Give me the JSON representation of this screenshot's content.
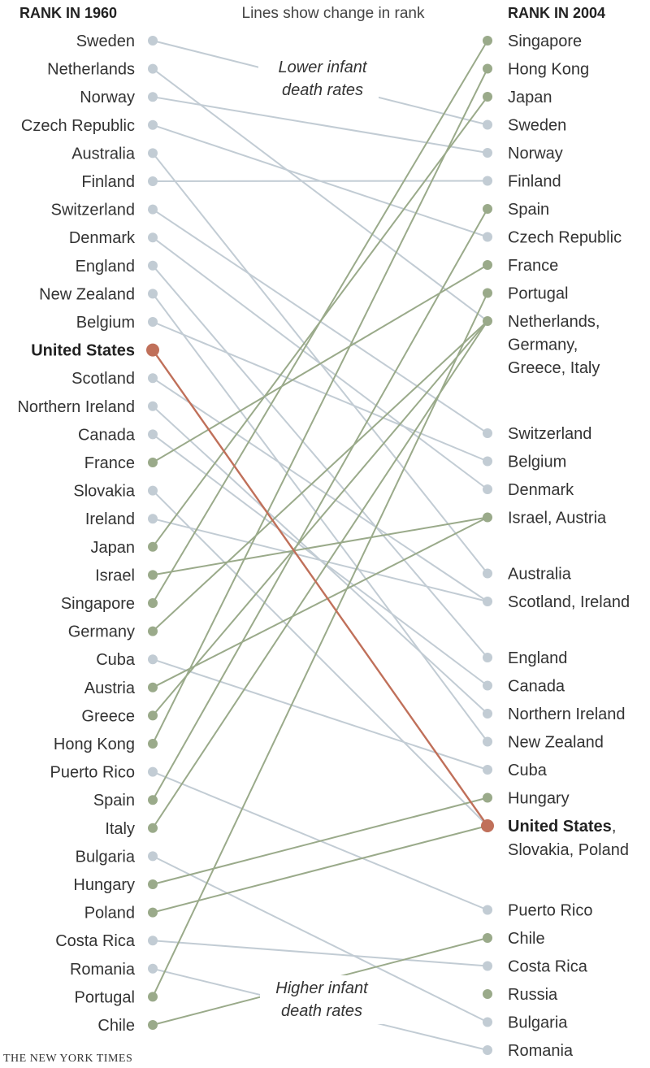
{
  "chart_data": {
    "type": "slope",
    "left_header": "RANK IN 1960",
    "right_header": "RANK IN 2004",
    "subtitle": "Lines show change in rank",
    "annotations": {
      "top": [
        "Lower infant",
        "death rates"
      ],
      "bottom": [
        "Higher infant",
        "death rates"
      ]
    },
    "credit": "THE NEW YORK TIMES",
    "colors": {
      "improved": "#9aaa8a",
      "declined": "#c2ccd4",
      "highlight": "#c0705a"
    },
    "highlight": "United States",
    "left": [
      {
        "rank": 1,
        "label": "Sweden",
        "group": "declined"
      },
      {
        "rank": 2,
        "label": "Netherlands",
        "group": "declined"
      },
      {
        "rank": 3,
        "label": "Norway",
        "group": "declined"
      },
      {
        "rank": 4,
        "label": "Czech Republic",
        "group": "declined"
      },
      {
        "rank": 5,
        "label": "Australia",
        "group": "declined"
      },
      {
        "rank": 6,
        "label": "Finland",
        "group": "declined"
      },
      {
        "rank": 7,
        "label": "Switzerland",
        "group": "declined"
      },
      {
        "rank": 8,
        "label": "Denmark",
        "group": "declined"
      },
      {
        "rank": 9,
        "label": "England",
        "group": "declined"
      },
      {
        "rank": 10,
        "label": "New Zealand",
        "group": "declined"
      },
      {
        "rank": 11,
        "label": "Belgium",
        "group": "declined"
      },
      {
        "rank": 12,
        "label": "United States",
        "group": "highlight"
      },
      {
        "rank": 13,
        "label": "Scotland",
        "group": "declined"
      },
      {
        "rank": 14,
        "label": "Northern Ireland",
        "group": "declined"
      },
      {
        "rank": 15,
        "label": "Canada",
        "group": "declined"
      },
      {
        "rank": 16,
        "label": "France",
        "group": "improved"
      },
      {
        "rank": 17,
        "label": "Slovakia",
        "group": "declined"
      },
      {
        "rank": 18,
        "label": "Ireland",
        "group": "declined"
      },
      {
        "rank": 19,
        "label": "Japan",
        "group": "improved"
      },
      {
        "rank": 20,
        "label": "Israel",
        "group": "improved"
      },
      {
        "rank": 21,
        "label": "Singapore",
        "group": "improved"
      },
      {
        "rank": 22,
        "label": "Germany",
        "group": "improved"
      },
      {
        "rank": 23,
        "label": "Cuba",
        "group": "declined"
      },
      {
        "rank": 24,
        "label": "Austria",
        "group": "improved"
      },
      {
        "rank": 25,
        "label": "Greece",
        "group": "improved"
      },
      {
        "rank": 26,
        "label": "Hong Kong",
        "group": "improved"
      },
      {
        "rank": 27,
        "label": "Puerto Rico",
        "group": "declined"
      },
      {
        "rank": 28,
        "label": "Spain",
        "group": "improved"
      },
      {
        "rank": 29,
        "label": "Italy",
        "group": "improved"
      },
      {
        "rank": 30,
        "label": "Bulgaria",
        "group": "declined"
      },
      {
        "rank": 31,
        "label": "Hungary",
        "group": "improved"
      },
      {
        "rank": 32,
        "label": "Poland",
        "group": "improved"
      },
      {
        "rank": 33,
        "label": "Costa Rica",
        "group": "declined"
      },
      {
        "rank": 34,
        "label": "Romania",
        "group": "declined"
      },
      {
        "rank": 35,
        "label": "Portugal",
        "group": "improved"
      },
      {
        "rank": 36,
        "label": "Chile",
        "group": "improved"
      }
    ],
    "right": [
      {
        "rank": 1,
        "lines": [
          "Singapore"
        ],
        "group": "improved"
      },
      {
        "rank": 2,
        "lines": [
          "Hong Kong"
        ],
        "group": "improved"
      },
      {
        "rank": 3,
        "lines": [
          "Japan"
        ],
        "group": "improved"
      },
      {
        "rank": 4,
        "lines": [
          "Sweden"
        ],
        "group": "declined"
      },
      {
        "rank": 5,
        "lines": [
          "Norway"
        ],
        "group": "declined"
      },
      {
        "rank": 6,
        "lines": [
          "Finland"
        ],
        "group": "declined"
      },
      {
        "rank": 7,
        "lines": [
          "Spain"
        ],
        "group": "improved"
      },
      {
        "rank": 8,
        "lines": [
          "Czech Republic"
        ],
        "group": "declined"
      },
      {
        "rank": 9,
        "lines": [
          "France"
        ],
        "group": "improved"
      },
      {
        "rank": 10,
        "lines": [
          "Portugal"
        ],
        "group": "improved"
      },
      {
        "rank": 11,
        "lines": [
          "Netherlands,",
          "Germany,",
          "Greece, Italy"
        ],
        "group": "improved"
      },
      {
        "rank": 15,
        "lines": [
          "Switzerland"
        ],
        "group": "declined"
      },
      {
        "rank": 16,
        "lines": [
          "Belgium"
        ],
        "group": "declined"
      },
      {
        "rank": 17,
        "lines": [
          "Denmark"
        ],
        "group": "declined"
      },
      {
        "rank": 18,
        "lines": [
          "Israel, Austria"
        ],
        "group": "improved"
      },
      {
        "rank": 20,
        "lines": [
          "Australia"
        ],
        "group": "declined"
      },
      {
        "rank": 21,
        "lines": [
          "Scotland, Ireland"
        ],
        "group": "declined"
      },
      {
        "rank": 23,
        "lines": [
          "England"
        ],
        "group": "declined"
      },
      {
        "rank": 24,
        "lines": [
          "Canada"
        ],
        "group": "declined"
      },
      {
        "rank": 25,
        "lines": [
          "Northern Ireland"
        ],
        "group": "declined"
      },
      {
        "rank": 26,
        "lines": [
          "New Zealand"
        ],
        "group": "declined"
      },
      {
        "rank": 27,
        "lines": [
          "Cuba"
        ],
        "group": "declined"
      },
      {
        "rank": 28,
        "lines": [
          "Hungary"
        ],
        "group": "improved"
      },
      {
        "rank": 29,
        "lines": [
          "United States",
          ",",
          "Slovakia, Poland"
        ],
        "group": "highlight"
      },
      {
        "rank": 32,
        "lines": [
          "Puerto Rico"
        ],
        "group": "declined"
      },
      {
        "rank": 33,
        "lines": [
          "Chile"
        ],
        "group": "improved"
      },
      {
        "rank": 34,
        "lines": [
          "Costa Rica"
        ],
        "group": "declined"
      },
      {
        "rank": 35,
        "lines": [
          "Russia"
        ],
        "group": "improved"
      },
      {
        "rank": 36,
        "lines": [
          "Bulgaria"
        ],
        "group": "declined"
      },
      {
        "rank": 37,
        "lines": [
          "Romania"
        ],
        "group": "declined"
      }
    ],
    "connections": [
      {
        "from": 1,
        "to": 4,
        "group": "declined"
      },
      {
        "from": 2,
        "to": 11,
        "group": "declined"
      },
      {
        "from": 3,
        "to": 5,
        "group": "declined"
      },
      {
        "from": 4,
        "to": 8,
        "group": "declined"
      },
      {
        "from": 5,
        "to": 20,
        "group": "declined"
      },
      {
        "from": 6,
        "to": 6,
        "group": "declined"
      },
      {
        "from": 7,
        "to": 15,
        "group": "declined"
      },
      {
        "from": 8,
        "to": 17,
        "group": "declined"
      },
      {
        "from": 9,
        "to": 23,
        "group": "declined"
      },
      {
        "from": 10,
        "to": 26,
        "group": "declined"
      },
      {
        "from": 11,
        "to": 16,
        "group": "declined"
      },
      {
        "from": 13,
        "to": 21,
        "group": "declined"
      },
      {
        "from": 14,
        "to": 25,
        "group": "declined"
      },
      {
        "from": 15,
        "to": 24,
        "group": "declined"
      },
      {
        "from": 17,
        "to": 29,
        "group": "declined"
      },
      {
        "from": 18,
        "to": 21,
        "group": "declined"
      },
      {
        "from": 23,
        "to": 27,
        "group": "declined"
      },
      {
        "from": 27,
        "to": 32,
        "group": "declined"
      },
      {
        "from": 30,
        "to": 36,
        "group": "declined"
      },
      {
        "from": 33,
        "to": 34,
        "group": "declined"
      },
      {
        "from": 34,
        "to": 37,
        "group": "declined"
      },
      {
        "from": 16,
        "to": 9,
        "group": "improved"
      },
      {
        "from": 19,
        "to": 3,
        "group": "improved"
      },
      {
        "from": 20,
        "to": 18,
        "group": "improved"
      },
      {
        "from": 21,
        "to": 1,
        "group": "improved"
      },
      {
        "from": 22,
        "to": 11,
        "group": "improved"
      },
      {
        "from": 24,
        "to": 18,
        "group": "improved"
      },
      {
        "from": 25,
        "to": 11,
        "group": "improved"
      },
      {
        "from": 26,
        "to": 2,
        "group": "improved"
      },
      {
        "from": 28,
        "to": 7,
        "group": "improved"
      },
      {
        "from": 29,
        "to": 11,
        "group": "improved"
      },
      {
        "from": 31,
        "to": 28,
        "group": "improved"
      },
      {
        "from": 32,
        "to": 29,
        "group": "improved"
      },
      {
        "from": 35,
        "to": 10,
        "group": "improved"
      },
      {
        "from": 36,
        "to": 33,
        "group": "improved"
      },
      {
        "from": 12,
        "to": 29,
        "group": "highlight"
      }
    ]
  }
}
